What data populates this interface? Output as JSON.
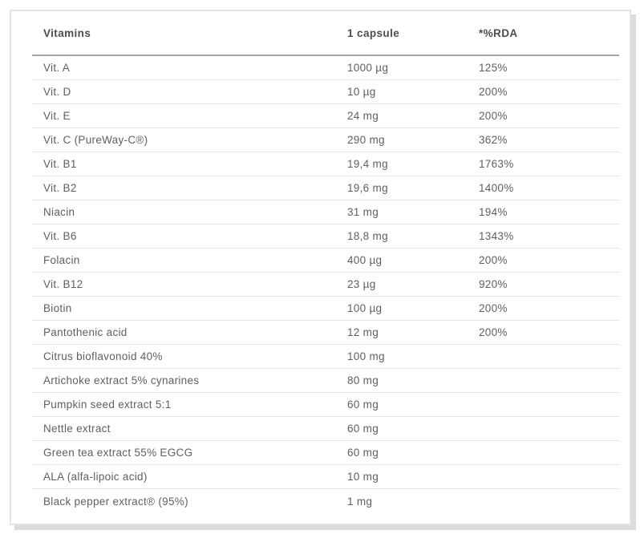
{
  "table": {
    "columns": [
      {
        "key": "name",
        "label": "Vitamins"
      },
      {
        "key": "amount",
        "label": "1 capsule"
      },
      {
        "key": "rda",
        "label": "*%RDA"
      }
    ],
    "rows": [
      {
        "name": "Vit. A",
        "amount": "1000 µg",
        "rda": "125%"
      },
      {
        "name": "Vit. D",
        "amount": "10 µg",
        "rda": "200%"
      },
      {
        "name": "Vit. E",
        "amount": "24 mg",
        "rda": "200%"
      },
      {
        "name": "Vit. C (PureWay-C®)",
        "amount": "290 mg",
        "rda": "362%"
      },
      {
        "name": "Vit. B1",
        "amount": "19,4 mg",
        "rda": "1763%"
      },
      {
        "name": "Vit. B2",
        "amount": "19,6 mg",
        "rda": "1400%"
      },
      {
        "name": "Niacin",
        "amount": "31 mg",
        "rda": "194%"
      },
      {
        "name": "Vit. B6",
        "amount": "18,8 mg",
        "rda": "1343%"
      },
      {
        "name": "Folacin",
        "amount": "400 µg",
        "rda": "200%"
      },
      {
        "name": "Vit. B12",
        "amount": "23 µg",
        "rda": "920%"
      },
      {
        "name": "Biotin",
        "amount": "100 µg",
        "rda": "200%"
      },
      {
        "name": "Pantothenic acid",
        "amount": "12 mg",
        "rda": "200%"
      },
      {
        "name": "Citrus bioflavonoid 40%",
        "amount": "100 mg",
        "rda": ""
      },
      {
        "name": "Artichoke extract 5% cynarines",
        "amount": "80 mg",
        "rda": ""
      },
      {
        "name": "Pumpkin seed extract 5:1",
        "amount": "60 mg",
        "rda": ""
      },
      {
        "name": "Nettle extract",
        "amount": "60 mg",
        "rda": ""
      },
      {
        "name": "Green tea extract 55% EGCG",
        "amount": "60 mg",
        "rda": ""
      },
      {
        "name": "ALA (alfa-lipoic acid)",
        "amount": "10 mg",
        "rda": ""
      },
      {
        "name": "Black pepper extract® (95%)",
        "amount": "1 mg",
        "rda": ""
      }
    ]
  },
  "colors": {
    "card_border": "#e4e4e4",
    "card_shadow": "#dcdcdc",
    "header_rule": "#a7a7a7",
    "row_rule": "#e4e4e4",
    "header_text": "#4c4d51",
    "row_text": "#5e5f63",
    "background": "#ffffff"
  }
}
